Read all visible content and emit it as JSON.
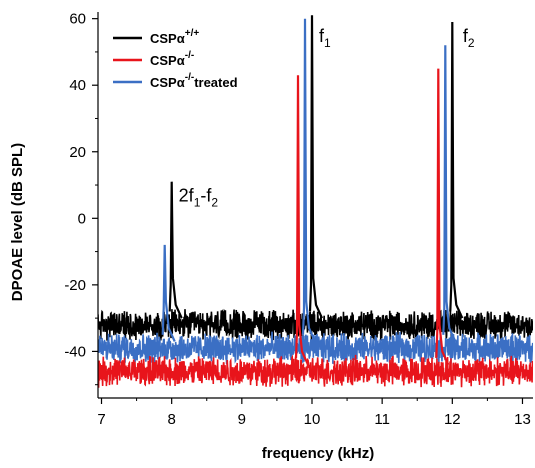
{
  "chart_data": {
    "type": "line",
    "title": "",
    "xlabel": "frequency (kHz)",
    "ylabel": "DPOAE level (dB SPL)",
    "xlim": [
      6.95,
      13.15
    ],
    "ylim": [
      -54,
      62
    ],
    "x_ticks": [
      7,
      8,
      9,
      10,
      11,
      12,
      13
    ],
    "y_ticks": [
      -40,
      -20,
      0,
      20,
      40,
      60
    ],
    "grid": false,
    "legend_position": "top-left",
    "series": [
      {
        "name_base": "CSPα",
        "name_sup": "+/+",
        "name_suffix": "",
        "color": "#000000",
        "noise_floor_db": -32,
        "peaks": [
          {
            "x": 8.0,
            "y": 11
          },
          {
            "x": 10.0,
            "y": 61
          },
          {
            "x": 12.0,
            "y": 59
          }
        ]
      },
      {
        "name_base": "CSPα",
        "name_sup": "-/-",
        "name_suffix": "",
        "color": "#e8141b",
        "noise_floor_db": -46,
        "peaks": [
          {
            "x": 9.8,
            "y": 43
          },
          {
            "x": 11.8,
            "y": 45
          }
        ]
      },
      {
        "name_base": "CSPα",
        "name_sup": "-/-",
        "name_suffix": "treated",
        "color": "#3b6fc4",
        "noise_floor_db": -39,
        "peaks": [
          {
            "x": 7.9,
            "y": -8
          },
          {
            "x": 9.9,
            "y": 60
          },
          {
            "x": 11.9,
            "y": 52
          }
        ]
      }
    ],
    "annotations": [
      {
        "base": "2f",
        "sub": "1",
        "rest": "-f",
        "sub2": "2",
        "x": 8.1,
        "y": 5
      },
      {
        "base": "f",
        "sub": "1",
        "rest": "",
        "sub2": "",
        "x": 10.1,
        "y": 53
      },
      {
        "base": "f",
        "sub": "2",
        "rest": "",
        "sub2": "",
        "x": 12.15,
        "y": 53
      }
    ]
  }
}
